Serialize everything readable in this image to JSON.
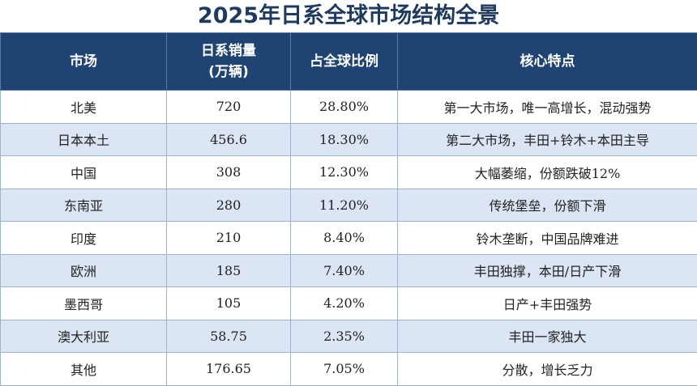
{
  "title": "2025年日系全球市场结构全景",
  "colors": {
    "header_bg": "#1f4373",
    "alt_row_bg": "#dbe5f3",
    "title": "#1f3a5f"
  },
  "headers": {
    "market": "市场",
    "sales_line1": "日系销量",
    "sales_line2": "(万辆)",
    "share": "占全球比例",
    "features": "核心特点"
  },
  "rows": [
    {
      "market": "北美",
      "sales": "720",
      "share": "28.80%",
      "features": "第一大市场，唯一高增长，混动强势"
    },
    {
      "market": "日本本土",
      "sales": "456.6",
      "share": "18.30%",
      "features": "第二大市场，丰田+铃木+本田主导"
    },
    {
      "market": "中国",
      "sales": "308",
      "share": "12.30%",
      "features": "大幅萎缩，份额跌破12%"
    },
    {
      "market": "东南亚",
      "sales": "280",
      "share": "11.20%",
      "features": "传统堡垒，份额下滑"
    },
    {
      "market": "印度",
      "sales": "210",
      "share": "8.40%",
      "features": "铃木垄断，中国品牌难进"
    },
    {
      "market": "欧洲",
      "sales": "185",
      "share": "7.40%",
      "features": "丰田独撑，本田/日产下滑"
    },
    {
      "market": "墨西哥",
      "sales": "105",
      "share": "4.20%",
      "features": "日产+丰田强势"
    },
    {
      "market": "澳大利亚",
      "sales": "58.75",
      "share": "2.35%",
      "features": "丰田一家独大"
    },
    {
      "market": "其他",
      "sales": "176.65",
      "share": "7.05%",
      "features": "分散，增长乏力"
    }
  ]
}
